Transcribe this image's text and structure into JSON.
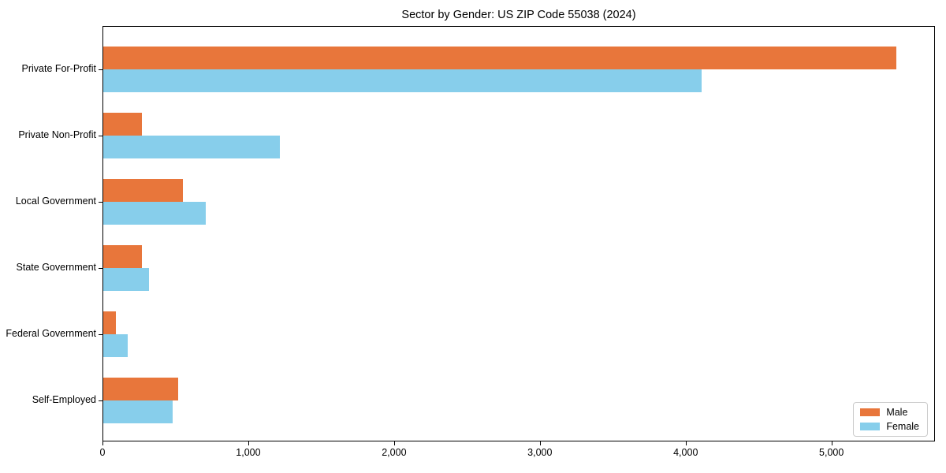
{
  "chart_data": {
    "type": "bar",
    "orientation": "horizontal",
    "title": "Sector by Gender: US ZIP Code 55038 (2024)",
    "categories": [
      "Private For-Profit",
      "Private Non-Profit",
      "Local Government",
      "State Government",
      "Federal Government",
      "Self-Employed"
    ],
    "series": [
      {
        "name": "Male",
        "color": "#e8763b",
        "values": [
          5440,
          265,
          545,
          265,
          85,
          515
        ]
      },
      {
        "name": "Female",
        "color": "#87ceeb",
        "values": [
          4105,
          1210,
          700,
          315,
          170,
          475
        ]
      }
    ],
    "xlabel": "",
    "ylabel": "",
    "xlim": [
      0,
      5710
    ],
    "x_ticks": {
      "values": [
        0,
        1000,
        2000,
        3000,
        4000,
        5000
      ],
      "labels": [
        "0",
        "1,000",
        "2,000",
        "3,000",
        "4,000",
        "5,000"
      ]
    },
    "grid": false,
    "legend": {
      "position": "lower right",
      "entries": [
        "Male",
        "Female"
      ]
    }
  }
}
